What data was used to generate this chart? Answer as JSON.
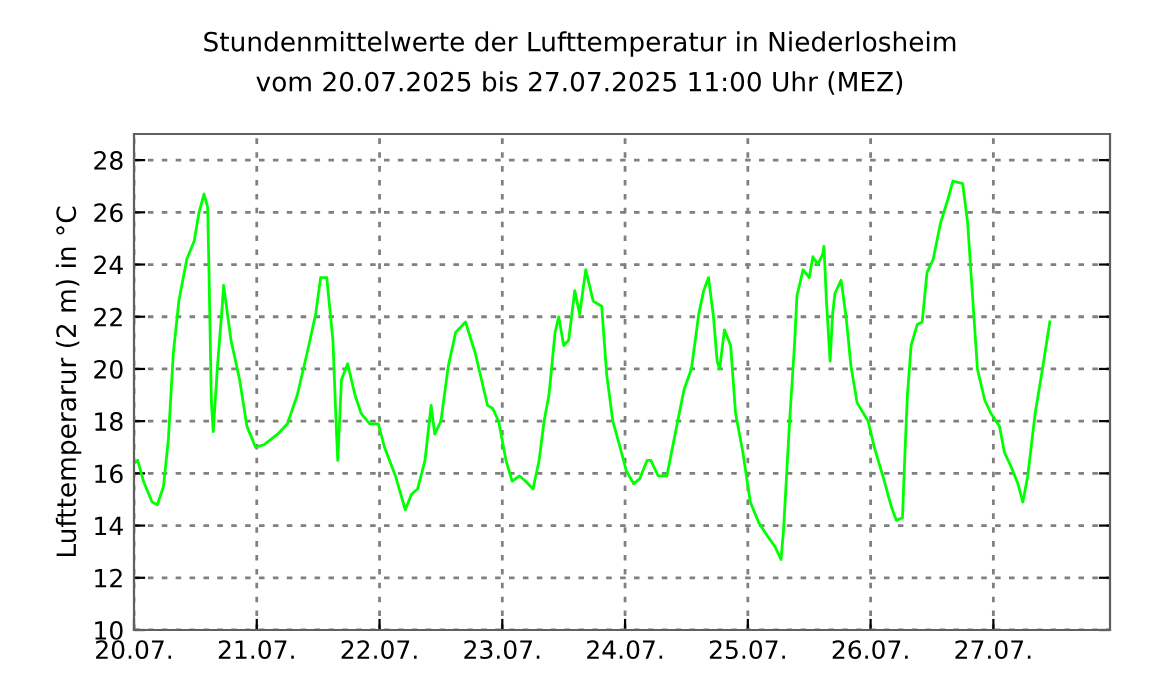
{
  "chart_data": {
    "type": "line",
    "title": "Stundenmittelwerte der Lufttemperatur in Niederlosheim",
    "subtitle": "vom 20.07.2025 bis 27.07.2025 11:00 Uhr (MEZ)",
    "ylabel": "Lufttemperarur (2 m) in °C",
    "xlim": [
      "2025-07-20",
      "2025-07-27T22:48"
    ],
    "ylim": [
      10,
      29
    ],
    "xticks": [
      {
        "value": "2025-07-20",
        "label": "20.07."
      },
      {
        "value": "2025-07-21",
        "label": "21.07."
      },
      {
        "value": "2025-07-22",
        "label": "22.07."
      },
      {
        "value": "2025-07-23",
        "label": "23.07."
      },
      {
        "value": "2025-07-24",
        "label": "24.07."
      },
      {
        "value": "2025-07-25",
        "label": "25.07."
      },
      {
        "value": "2025-07-26",
        "label": "26.07."
      },
      {
        "value": "2025-07-27",
        "label": "27.07."
      }
    ],
    "yticks": [
      10,
      12,
      14,
      16,
      18,
      20,
      22,
      24,
      26,
      28
    ],
    "grid": true,
    "marker": "none",
    "line_style": "solid",
    "series": [
      {
        "color": "#00ff00",
        "x": [
          "2025-07-20T00:00",
          "2025-07-20T00:43",
          "2025-07-20T01:51",
          "2025-07-20T03:32",
          "2025-07-20T04:34",
          "2025-07-20T05:46",
          "2025-07-20T06:43",
          "2025-07-20T07:41",
          "2025-07-20T08:46",
          "2025-07-20T10:19",
          "2025-07-20T11:46",
          "2025-07-20T12:43",
          "2025-07-20T13:41",
          "2025-07-20T14:24",
          "2025-07-20T14:38",
          "2025-07-20T15:07",
          "2025-07-20T15:29",
          "2025-07-20T16:19",
          "2025-07-20T17:17",
          "2025-07-20T17:31",
          "2025-07-20T18:58",
          "2025-07-20T20:38",
          "2025-07-20T22:05",
          "2025-07-20T23:46",
          "2025-07-21T01:26",
          "2025-07-21T04:05",
          "2025-07-21T06:00",
          "2025-07-21T07:55",
          "2025-07-21T09:50",
          "2025-07-21T11:31",
          "2025-07-21T12:29",
          "2025-07-21T13:41",
          "2025-07-21T14:53",
          "2025-07-21T15:36",
          "2025-07-21T15:50",
          "2025-07-21T16:34",
          "2025-07-21T17:46",
          "2025-07-21T19:12",
          "2025-07-21T20:24",
          "2025-07-21T22:05",
          "2025-07-21T23:46",
          "2025-07-22T00:58",
          "2025-07-22T03:07",
          "2025-07-22T05:02",
          "2025-07-22T06:14",
          "2025-07-22T07:26",
          "2025-07-22T08:53",
          "2025-07-22T10:05",
          "2025-07-22T10:48",
          "2025-07-22T12:00",
          "2025-07-22T13:26",
          "2025-07-22T14:53",
          "2025-07-22T16:48",
          "2025-07-22T18:43",
          "2025-07-22T21:07",
          "2025-07-22T22:05",
          "2025-07-22T23:17",
          "2025-07-23T00:43",
          "2025-07-23T01:55",
          "2025-07-23T03:22",
          "2025-07-23T04:34",
          "2025-07-23T06:00",
          "2025-07-23T07:12",
          "2025-07-23T08:10",
          "2025-07-23T09:07",
          "2025-07-23T10:19",
          "2025-07-23T11:02",
          "2025-07-23T12:00",
          "2025-07-23T12:58",
          "2025-07-23T14:10",
          "2025-07-23T15:07",
          "2025-07-23T16:19",
          "2025-07-23T17:46",
          "2025-07-23T19:26",
          "2025-07-23T20:24",
          "2025-07-23T21:36",
          "2025-07-23T23:02",
          "2025-07-24T00:14",
          "2025-07-24T01:41",
          "2025-07-24T02:53",
          "2025-07-24T04:19",
          "2025-07-24T05:02",
          "2025-07-24T06:29",
          "2025-07-24T08:10",
          "2025-07-24T10:05",
          "2025-07-24T11:31",
          "2025-07-24T12:58",
          "2025-07-24T14:24",
          "2025-07-24T15:22",
          "2025-07-24T16:19",
          "2025-07-24T17:17",
          "2025-07-24T18:00",
          "2025-07-24T18:29",
          "2025-07-24T19:26",
          "2025-07-24T20:38",
          "2025-07-24T21:36",
          "2025-07-24T23:02",
          "2025-07-25T00:29",
          "2025-07-25T02:10",
          "2025-07-25T03:50",
          "2025-07-25T05:17",
          "2025-07-25T06:29",
          "2025-07-25T06:58",
          "2025-07-25T08:10",
          "2025-07-25T09:07",
          "2025-07-25T09:36",
          "2025-07-25T10:48",
          "2025-07-25T12:00",
          "2025-07-25T12:43",
          "2025-07-25T13:41",
          "2025-07-25T14:38",
          "2025-07-25T14:53",
          "2025-07-25T15:22",
          "2025-07-25T16:05",
          "2025-07-25T16:34",
          "2025-07-25T17:02",
          "2025-07-25T18:14",
          "2025-07-25T19:12",
          "2025-07-25T20:10",
          "2025-07-25T21:22",
          "2025-07-25T23:31",
          "2025-07-26T00:43",
          "2025-07-26T02:24",
          "2025-07-26T04:05",
          "2025-07-26T05:02",
          "2025-07-26T06:14",
          "2025-07-26T06:43",
          "2025-07-26T07:12",
          "2025-07-26T07:55",
          "2025-07-26T09:07",
          "2025-07-26T10:05",
          "2025-07-26T11:02",
          "2025-07-26T12:14",
          "2025-07-26T13:41",
          "2025-07-26T15:07",
          "2025-07-26T16:05",
          "2025-07-26T18:00",
          "2025-07-26T18:58",
          "2025-07-26T20:10",
          "2025-07-26T20:53",
          "2025-07-26T22:19",
          "2025-07-26T23:31",
          "2025-07-27T01:12",
          "2025-07-27T02:10",
          "2025-07-27T03:22",
          "2025-07-27T04:48",
          "2025-07-27T05:46",
          "2025-07-27T06:43",
          "2025-07-27T08:10",
          "2025-07-27T09:36",
          "2025-07-27T11:02"
        ],
        "values": [
          16.4,
          16.5,
          15.7,
          14.9,
          14.8,
          15.5,
          17.3,
          20.6,
          22.6,
          24.2,
          24.9,
          26.0,
          26.7,
          26.2,
          24.0,
          18.8,
          17.6,
          20.1,
          22.5,
          23.2,
          21.1,
          19.6,
          17.8,
          17.0,
          17.1,
          17.5,
          17.9,
          19.0,
          20.6,
          22.1,
          23.5,
          23.5,
          21.1,
          17.5,
          16.5,
          19.6,
          20.2,
          19.0,
          18.3,
          17.9,
          17.9,
          17.0,
          15.9,
          14.6,
          15.2,
          15.4,
          16.5,
          18.6,
          17.5,
          18.0,
          20.1,
          21.4,
          21.8,
          20.6,
          18.6,
          18.5,
          18.0,
          16.5,
          15.7,
          15.9,
          15.7,
          15.4,
          16.5,
          18.0,
          19.0,
          21.4,
          22.0,
          20.9,
          21.1,
          23.0,
          22.1,
          23.8,
          22.6,
          22.4,
          19.8,
          18.0,
          17.0,
          16.1,
          15.6,
          15.8,
          16.5,
          16.5,
          15.9,
          15.9,
          17.8,
          19.2,
          20.0,
          22.1,
          23.0,
          23.5,
          22.0,
          20.3,
          20.0,
          21.5,
          20.9,
          18.3,
          16.8,
          14.9,
          14.1,
          13.6,
          13.2,
          12.7,
          13.8,
          18.0,
          20.9,
          22.8,
          23.8,
          23.5,
          24.3,
          24.0,
          24.4,
          24.7,
          22.6,
          20.3,
          22.1,
          22.9,
          23.4,
          22.0,
          20.1,
          18.7,
          18.0,
          17.0,
          15.9,
          14.7,
          14.2,
          14.3,
          16.8,
          19.0,
          20.9,
          21.7,
          21.8,
          23.7,
          24.2,
          25.6,
          26.5,
          27.2,
          27.1,
          25.6,
          22.1,
          20.0,
          18.8,
          18.3,
          17.8,
          16.8,
          16.3,
          15.6,
          14.9,
          15.9,
          18.3,
          20.0,
          21.8
        ]
      }
    ]
  }
}
